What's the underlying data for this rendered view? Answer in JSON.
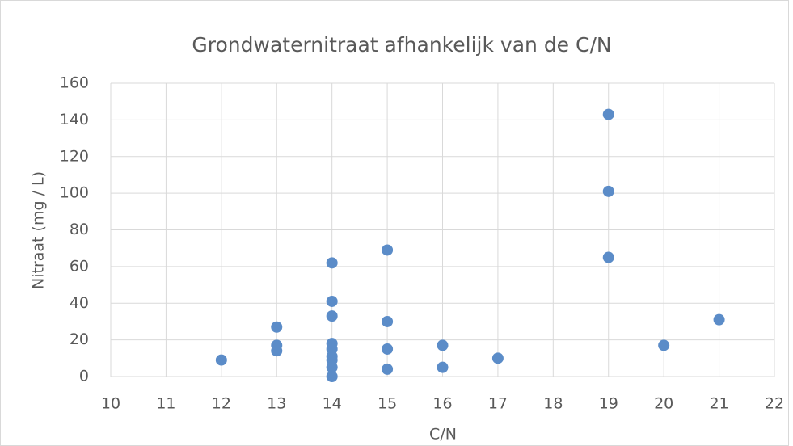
{
  "chart_data": {
    "type": "scatter",
    "title": "Grondwaternitraat afhankelijk van de C/N",
    "x_label": "C/N",
    "y_label": "Nitraat (mg / L)",
    "x": [
      12,
      13,
      13,
      13,
      14,
      14,
      14,
      14,
      14,
      14,
      14,
      14,
      14,
      15,
      15,
      15,
      15,
      16,
      16,
      17,
      19,
      19,
      19,
      20,
      21
    ],
    "values": [
      9,
      27,
      17,
      14,
      62,
      41,
      33,
      18,
      15,
      11,
      9,
      5,
      0,
      69,
      30,
      15,
      4,
      17,
      5,
      10,
      143,
      101,
      65,
      17,
      31
    ],
    "color": "#5b8cc8",
    "xlim": [
      10,
      22
    ],
    "xticks": [
      10,
      11,
      12,
      13,
      14,
      15,
      16,
      17,
      18,
      19,
      20,
      21,
      22
    ],
    "ylim": [
      0,
      160
    ],
    "yticks": [
      0,
      20,
      40,
      60,
      80,
      100,
      120,
      140,
      160
    ],
    "grid": true
  }
}
